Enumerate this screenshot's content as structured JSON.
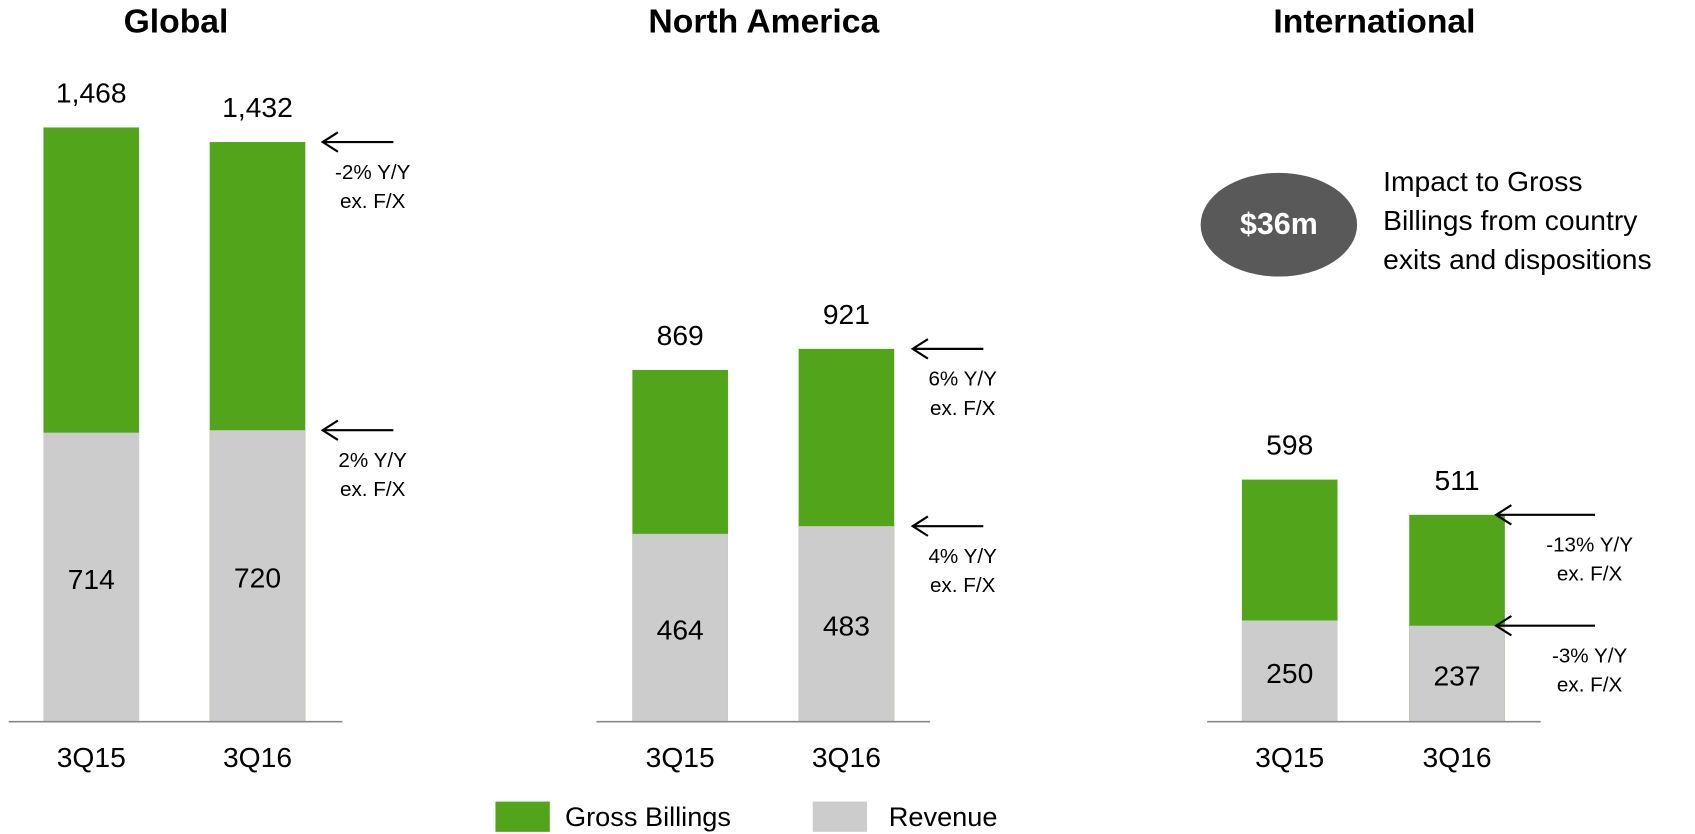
{
  "chart_data": [
    {
      "type": "bar",
      "title": "Global",
      "categories": [
        "3Q15",
        "3Q16"
      ],
      "series": [
        {
          "name": "Gross Billings",
          "color": "#52a51a",
          "values": [
            1468,
            1432
          ],
          "value_labels": [
            "1,468",
            "1,432"
          ],
          "annotation": [
            "-2% Y/Y",
            "ex. F/X"
          ]
        },
        {
          "name": "Revenue",
          "color": "#cccccc",
          "values": [
            714,
            720
          ],
          "annotation": [
            "2% Y/Y",
            "ex. F/X"
          ]
        }
      ]
    },
    {
      "type": "bar",
      "title": "North America",
      "categories": [
        "3Q15",
        "3Q16"
      ],
      "series": [
        {
          "name": "Gross Billings",
          "color": "#52a51a",
          "values": [
            869,
            921
          ],
          "annotation": [
            "6% Y/Y",
            "ex. F/X"
          ]
        },
        {
          "name": "Revenue",
          "color": "#cccccc",
          "values": [
            464,
            483
          ],
          "annotation": [
            "4% Y/Y",
            "ex. F/X"
          ]
        }
      ]
    },
    {
      "type": "bar",
      "title": "International",
      "categories": [
        "3Q15",
        "3Q16"
      ],
      "series": [
        {
          "name": "Gross Billings",
          "color": "#52a51a",
          "values": [
            598,
            511
          ],
          "annotation": [
            "-13% Y/Y",
            "ex. F/X"
          ]
        },
        {
          "name": "Revenue",
          "color": "#cccccc",
          "values": [
            250,
            237
          ],
          "annotation": [
            "-3% Y/Y",
            "ex. F/X"
          ]
        }
      ],
      "callout": {
        "label": "$36m",
        "lines": [
          "Impact to Gross",
          "Billings from country",
          "exits and dispositions"
        ]
      }
    }
  ]
}
